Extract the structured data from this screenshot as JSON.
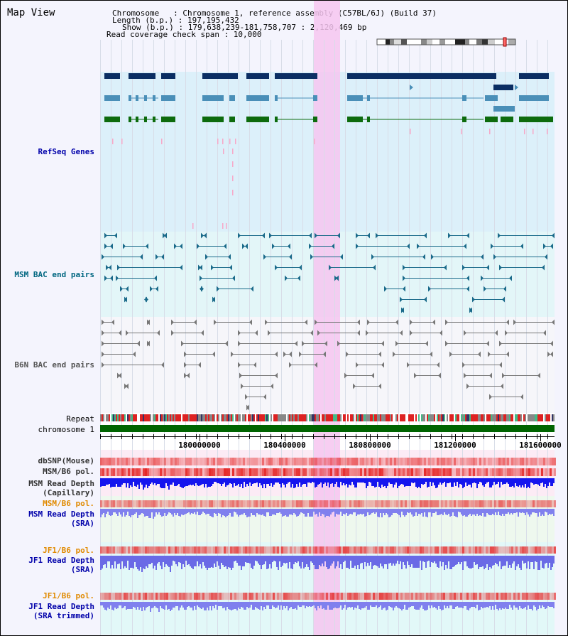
{
  "view_title": "Map View",
  "info": {
    "chromosome": "Chromosome   : Chromosome 1, reference assembly (C57BL/6J) (Build 37)",
    "length": "Length (b.p.) : 197,195,432",
    "show": "Show (b.p.) : 179,638,239-181,758,707 : 2,120,469 bp",
    "span": "Read coverage check span : 10,000"
  },
  "tracks": {
    "refseq": "RefSeq Genes",
    "msm_bac": "MSM BAC end pairs",
    "b6n_bac": "B6N BAC end pairs",
    "repeat": "Repeat",
    "chromosome": "chromosome 1",
    "dbsnp": "dbSNP(Mouse)",
    "msm_b6_pol": "MSM/B6 pol.",
    "msm_depth_cap_1": "MSM Read Depth",
    "msm_depth_cap_2": "(Capillary)",
    "msm_b6_pol_sra": "MSM/B6 pol.",
    "msm_depth_sra_1": "MSM Read Depth",
    "msm_depth_sra_2": "(SRA)",
    "jf1_pol_1": "JF1/B6 pol.",
    "jf1_depth_sra_1": "JF1 Read Depth",
    "jf1_depth_sra_2": "(SRA)",
    "jf1_pol_2": "JF1/B6 pol.",
    "jf1_depth_trim_1": "JF1 Read Depth",
    "jf1_depth_trim_2": "(SRA trimmed)"
  },
  "axis": {
    "ticks": [
      "180000000",
      "180400000",
      "180800000",
      "181200000",
      "181600000"
    ]
  },
  "colors": {
    "gene_dark": "#0b2e63",
    "gene_mid": "#4a8fb8",
    "gene_green": "#0d6b0d",
    "msm_bac": "#1a6a8a",
    "b6n_bac": "#777777",
    "highlight": "#f6c6f0",
    "chromosome": "#006400",
    "label_blue": "#0000aa",
    "label_orange": "#e08a00"
  }
}
